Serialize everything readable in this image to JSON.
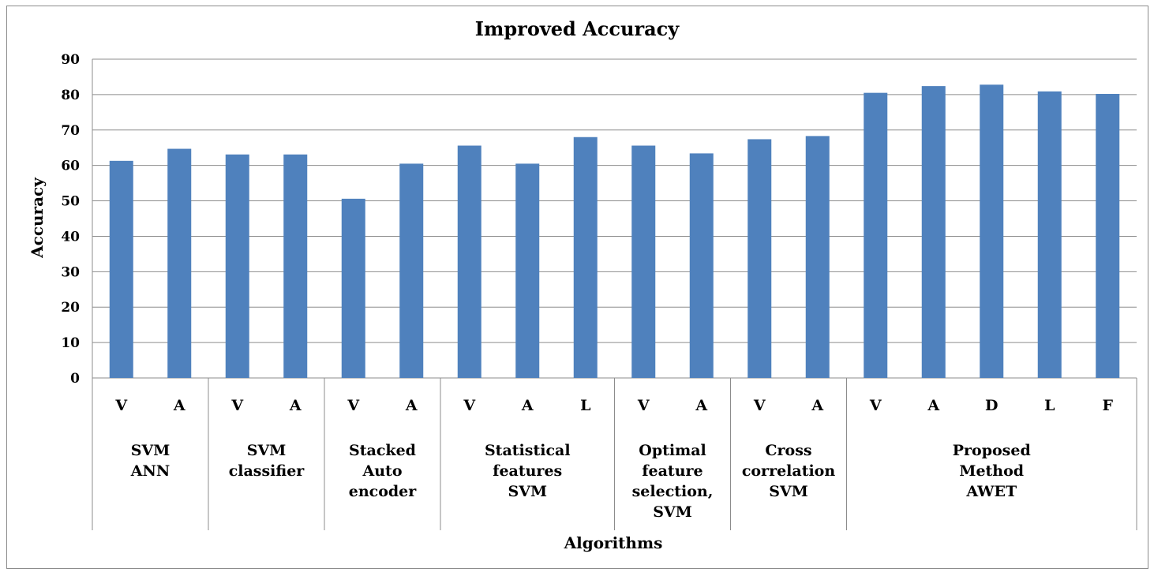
{
  "chart_data": {
    "type": "bar",
    "title": "Improved Accuracy",
    "xlabel": "Algorithms",
    "ylabel": "Accuracy",
    "ylim": [
      0,
      90
    ],
    "yticks": [
      0,
      10,
      20,
      30,
      40,
      50,
      60,
      70,
      80,
      90
    ],
    "grid": true,
    "legend": "none",
    "bar_color": "#4f81bd",
    "grid_color": "#8c8c8c",
    "groups": [
      {
        "label_lines": [
          "SVM",
          "ANN"
        ],
        "categories": [
          "V",
          "A"
        ],
        "values": [
          61.3,
          64.7
        ]
      },
      {
        "label_lines": [
          "SVM",
          "classifier"
        ],
        "categories": [
          "V",
          "A"
        ],
        "values": [
          63.1,
          63.1
        ]
      },
      {
        "label_lines": [
          "Stacked",
          "Auto",
          "encoder"
        ],
        "categories": [
          "V",
          "A"
        ],
        "values": [
          50.6,
          60.5
        ]
      },
      {
        "label_lines": [
          "Statistical",
          "features",
          "SVM"
        ],
        "categories": [
          "V",
          "A",
          "L"
        ],
        "values": [
          65.6,
          60.5,
          68.0
        ]
      },
      {
        "label_lines": [
          "Optimal",
          "feature",
          "selection,",
          "SVM"
        ],
        "categories": [
          "V",
          "A"
        ],
        "values": [
          65.6,
          63.4
        ]
      },
      {
        "label_lines": [
          "Cross",
          "correlation",
          "SVM"
        ],
        "categories": [
          "V",
          "A"
        ],
        "values": [
          67.4,
          68.3
        ]
      },
      {
        "label_lines": [
          "Proposed",
          "Method",
          "AWET"
        ],
        "categories": [
          "V",
          "A",
          "D",
          "L",
          "F"
        ],
        "values": [
          80.5,
          82.4,
          82.8,
          80.9,
          80.2
        ]
      }
    ]
  }
}
